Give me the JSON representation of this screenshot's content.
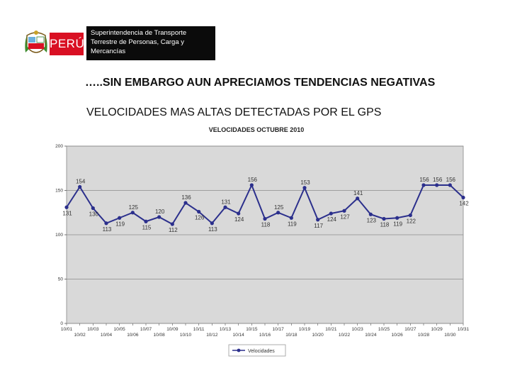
{
  "header": {
    "logo_text": "PERÚ",
    "agency_lines": [
      "Superintendencia de Transporte",
      "Terrestre de Personas, Carga y",
      "Mercancías"
    ]
  },
  "headline": "…..SIN EMBARGO AUN APRECIAMOS TENDENCIAS NEGATIVAS",
  "subheadline": "VELOCIDADES MAS ALTAS DETECTADAS POR EL GPS",
  "colors": {
    "series": "#2b2f8c",
    "plot_bg": "#d9d9d9",
    "brand_red": "#d91023"
  },
  "chart_data": {
    "type": "line",
    "title": "VELOCIDADES OCTUBRE 2010",
    "ylim": [
      0,
      200
    ],
    "yticks": [
      0,
      50,
      100,
      150,
      200
    ],
    "grid": true,
    "legend_position": "bottom-center",
    "series": [
      {
        "name": "Velocidades",
        "values": [
          131,
          154,
          130,
          113,
          119,
          125,
          115,
          120,
          112,
          136,
          126,
          113,
          131,
          124,
          156,
          118,
          125,
          119,
          153,
          117,
          124,
          127,
          141,
          123,
          118,
          119,
          122,
          156,
          156,
          156,
          142
        ]
      }
    ],
    "categories": [
      "10/01",
      "10/02",
      "10/03",
      "10/04",
      "10/05",
      "10/06",
      "10/07",
      "10/08",
      "10/09",
      "10/10",
      "10/11",
      "10/12",
      "10/13",
      "10/14",
      "10/15",
      "10/16",
      "10/17",
      "10/18",
      "10/19",
      "10/20",
      "10/21",
      "10/22",
      "10/23",
      "10/24",
      "10/25",
      "10/26",
      "10/27",
      "10/28",
      "10/29",
      "10/30",
      "10/31"
    ]
  }
}
